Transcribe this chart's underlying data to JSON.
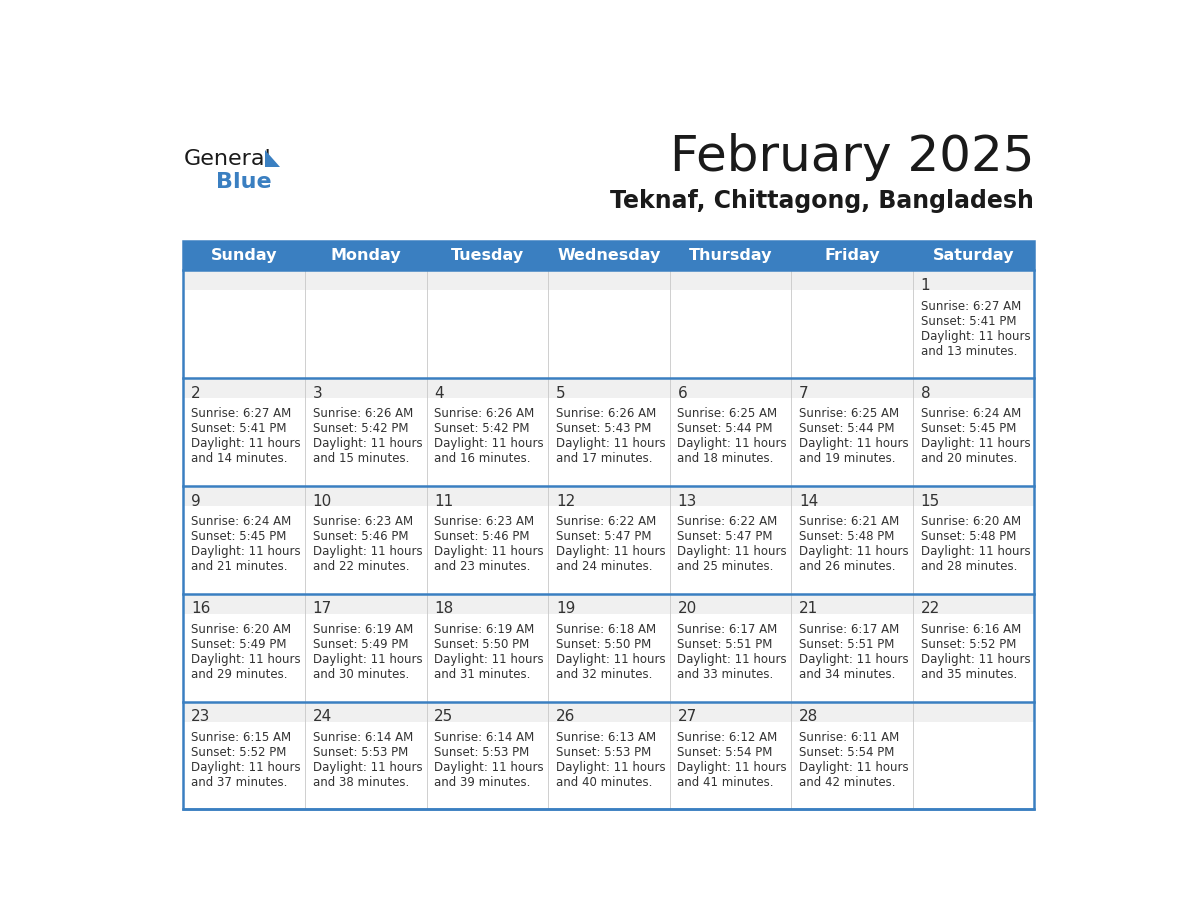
{
  "title": "February 2025",
  "subtitle": "Teknaf, Chittagong, Bangladesh",
  "days_of_week": [
    "Sunday",
    "Monday",
    "Tuesday",
    "Wednesday",
    "Thursday",
    "Friday",
    "Saturday"
  ],
  "header_bg": "#3a7fc1",
  "header_text": "#ffffff",
  "cell_bg": "#f0f0f0",
  "cell_bg_white": "#ffffff",
  "day_number_color": "#333333",
  "info_text_color": "#333333",
  "separator_color": "#3a7fc1",
  "grid_line_color": "#c8c8c8",
  "title_color": "#1a1a1a",
  "subtitle_color": "#1a1a1a",
  "logo_general_color": "#1a1a1a",
  "logo_blue_color": "#3a7fc1",
  "calendar_data": [
    [
      null,
      null,
      null,
      null,
      null,
      null,
      {
        "day": 1,
        "sunrise": "6:27 AM",
        "sunset": "5:41 PM",
        "daylight_line1": "Daylight: 11 hours",
        "daylight_line2": "and 13 minutes."
      }
    ],
    [
      {
        "day": 2,
        "sunrise": "6:27 AM",
        "sunset": "5:41 PM",
        "daylight_line1": "Daylight: 11 hours",
        "daylight_line2": "and 14 minutes."
      },
      {
        "day": 3,
        "sunrise": "6:26 AM",
        "sunset": "5:42 PM",
        "daylight_line1": "Daylight: 11 hours",
        "daylight_line2": "and 15 minutes."
      },
      {
        "day": 4,
        "sunrise": "6:26 AM",
        "sunset": "5:42 PM",
        "daylight_line1": "Daylight: 11 hours",
        "daylight_line2": "and 16 minutes."
      },
      {
        "day": 5,
        "sunrise": "6:26 AM",
        "sunset": "5:43 PM",
        "daylight_line1": "Daylight: 11 hours",
        "daylight_line2": "and 17 minutes."
      },
      {
        "day": 6,
        "sunrise": "6:25 AM",
        "sunset": "5:44 PM",
        "daylight_line1": "Daylight: 11 hours",
        "daylight_line2": "and 18 minutes."
      },
      {
        "day": 7,
        "sunrise": "6:25 AM",
        "sunset": "5:44 PM",
        "daylight_line1": "Daylight: 11 hours",
        "daylight_line2": "and 19 minutes."
      },
      {
        "day": 8,
        "sunrise": "6:24 AM",
        "sunset": "5:45 PM",
        "daylight_line1": "Daylight: 11 hours",
        "daylight_line2": "and 20 minutes."
      }
    ],
    [
      {
        "day": 9,
        "sunrise": "6:24 AM",
        "sunset": "5:45 PM",
        "daylight_line1": "Daylight: 11 hours",
        "daylight_line2": "and 21 minutes."
      },
      {
        "day": 10,
        "sunrise": "6:23 AM",
        "sunset": "5:46 PM",
        "daylight_line1": "Daylight: 11 hours",
        "daylight_line2": "and 22 minutes."
      },
      {
        "day": 11,
        "sunrise": "6:23 AM",
        "sunset": "5:46 PM",
        "daylight_line1": "Daylight: 11 hours",
        "daylight_line2": "and 23 minutes."
      },
      {
        "day": 12,
        "sunrise": "6:22 AM",
        "sunset": "5:47 PM",
        "daylight_line1": "Daylight: 11 hours",
        "daylight_line2": "and 24 minutes."
      },
      {
        "day": 13,
        "sunrise": "6:22 AM",
        "sunset": "5:47 PM",
        "daylight_line1": "Daylight: 11 hours",
        "daylight_line2": "and 25 minutes."
      },
      {
        "day": 14,
        "sunrise": "6:21 AM",
        "sunset": "5:48 PM",
        "daylight_line1": "Daylight: 11 hours",
        "daylight_line2": "and 26 minutes."
      },
      {
        "day": 15,
        "sunrise": "6:20 AM",
        "sunset": "5:48 PM",
        "daylight_line1": "Daylight: 11 hours",
        "daylight_line2": "and 28 minutes."
      }
    ],
    [
      {
        "day": 16,
        "sunrise": "6:20 AM",
        "sunset": "5:49 PM",
        "daylight_line1": "Daylight: 11 hours",
        "daylight_line2": "and 29 minutes."
      },
      {
        "day": 17,
        "sunrise": "6:19 AM",
        "sunset": "5:49 PM",
        "daylight_line1": "Daylight: 11 hours",
        "daylight_line2": "and 30 minutes."
      },
      {
        "day": 18,
        "sunrise": "6:19 AM",
        "sunset": "5:50 PM",
        "daylight_line1": "Daylight: 11 hours",
        "daylight_line2": "and 31 minutes."
      },
      {
        "day": 19,
        "sunrise": "6:18 AM",
        "sunset": "5:50 PM",
        "daylight_line1": "Daylight: 11 hours",
        "daylight_line2": "and 32 minutes."
      },
      {
        "day": 20,
        "sunrise": "6:17 AM",
        "sunset": "5:51 PM",
        "daylight_line1": "Daylight: 11 hours",
        "daylight_line2": "and 33 minutes."
      },
      {
        "day": 21,
        "sunrise": "6:17 AM",
        "sunset": "5:51 PM",
        "daylight_line1": "Daylight: 11 hours",
        "daylight_line2": "and 34 minutes."
      },
      {
        "day": 22,
        "sunrise": "6:16 AM",
        "sunset": "5:52 PM",
        "daylight_line1": "Daylight: 11 hours",
        "daylight_line2": "and 35 minutes."
      }
    ],
    [
      {
        "day": 23,
        "sunrise": "6:15 AM",
        "sunset": "5:52 PM",
        "daylight_line1": "Daylight: 11 hours",
        "daylight_line2": "and 37 minutes."
      },
      {
        "day": 24,
        "sunrise": "6:14 AM",
        "sunset": "5:53 PM",
        "daylight_line1": "Daylight: 11 hours",
        "daylight_line2": "and 38 minutes."
      },
      {
        "day": 25,
        "sunrise": "6:14 AM",
        "sunset": "5:53 PM",
        "daylight_line1": "Daylight: 11 hours",
        "daylight_line2": "and 39 minutes."
      },
      {
        "day": 26,
        "sunrise": "6:13 AM",
        "sunset": "5:53 PM",
        "daylight_line1": "Daylight: 11 hours",
        "daylight_line2": "and 40 minutes."
      },
      {
        "day": 27,
        "sunrise": "6:12 AM",
        "sunset": "5:54 PM",
        "daylight_line1": "Daylight: 11 hours",
        "daylight_line2": "and 41 minutes."
      },
      {
        "day": 28,
        "sunrise": "6:11 AM",
        "sunset": "5:54 PM",
        "daylight_line1": "Daylight: 11 hours",
        "daylight_line2": "and 42 minutes."
      },
      null
    ]
  ]
}
